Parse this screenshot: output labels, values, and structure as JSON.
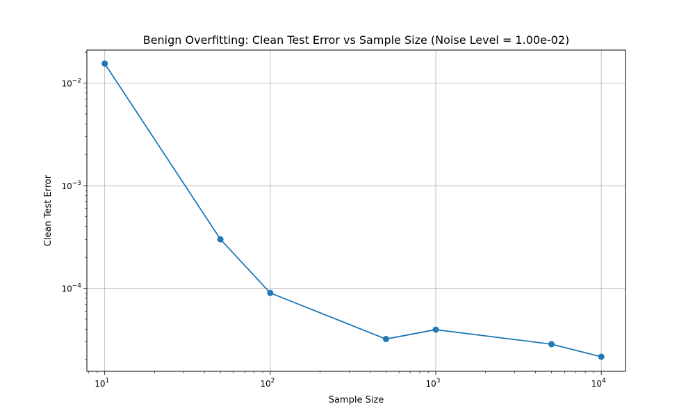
{
  "chart_data": {
    "type": "line",
    "title": "Benign Overfitting: Clean Test Error vs Sample Size (Noise Level = 1.00e-02)",
    "xlabel": "Sample Size",
    "ylabel": "Clean Test Error",
    "xscale": "log",
    "yscale": "log",
    "xlim": [
      7.8,
      14000
    ],
    "ylim": [
      1.55e-05,
      0.021
    ],
    "grid": true,
    "x_ticks": [
      {
        "value": 10,
        "base": "10",
        "exp": "1"
      },
      {
        "value": 100,
        "base": "10",
        "exp": "2"
      },
      {
        "value": 1000,
        "base": "10",
        "exp": "3"
      },
      {
        "value": 10000,
        "base": "10",
        "exp": "4"
      }
    ],
    "y_ticks": [
      {
        "value": 0.0001,
        "base": "10",
        "exp": "−4"
      },
      {
        "value": 0.001,
        "base": "10",
        "exp": "−3"
      },
      {
        "value": 0.01,
        "base": "10",
        "exp": "−2"
      }
    ],
    "series": [
      {
        "color": "#1f77b4",
        "marker": "circle",
        "x": [
          10,
          50,
          100,
          500,
          1000,
          5000,
          10000
        ],
        "y": [
          0.0155,
          0.0003,
          9e-05,
          3.2e-05,
          3.95e-05,
          2.85e-05,
          2.15e-05
        ]
      }
    ]
  }
}
